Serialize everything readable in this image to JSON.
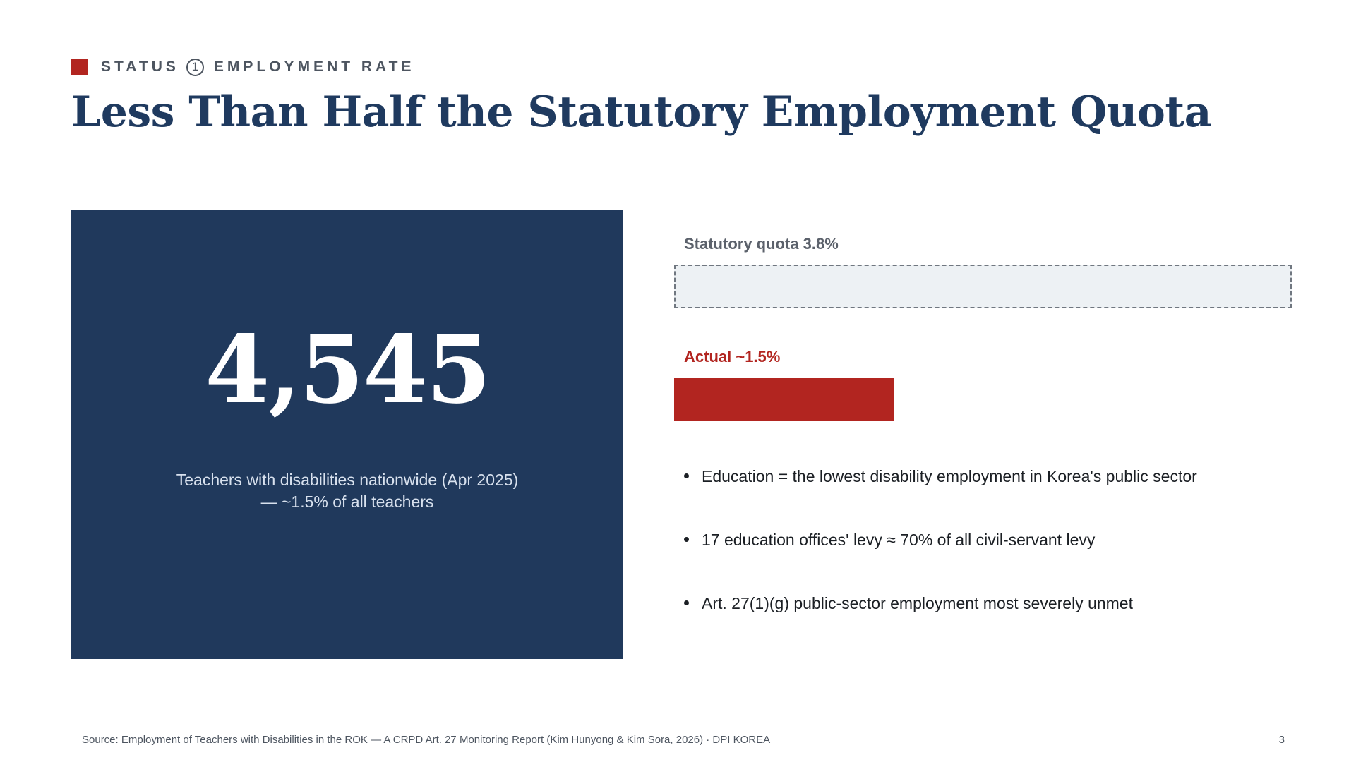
{
  "header": {
    "kicker_before": "STATUS",
    "kicker_number": "1",
    "kicker_after": "EMPLOYMENT RATE",
    "title": "Less Than Half the Statutory Employment Quota"
  },
  "stat": {
    "value": "4,545",
    "caption_line1": "Teachers with disabilities nationwide (Apr 2025)",
    "caption_line2": "— ~1.5% of all teachers"
  },
  "comparison": {
    "quota_label": "Statutory quota 3.8%",
    "quota_value": 3.8,
    "actual_label": "Actual ~1.5%",
    "actual_value": 1.5
  },
  "bullets": [
    "Education = the lowest disability employment in Korea's public sector",
    "17 education offices' levy ≈ 70% of all civil-servant levy",
    "Art. 27(1)(g) public-sector employment most severely unmet"
  ],
  "footer": {
    "source": "Source: Employment of Teachers with Disabilities in the ROK — A CRPD Art. 27 Monitoring Report (Kim Hunyong & Kim Sora, 2026) · DPI KOREA",
    "page": "3"
  },
  "colors": {
    "accent_red": "#b22520",
    "navy": "#20395c",
    "title_navy": "#1f3a5f"
  }
}
